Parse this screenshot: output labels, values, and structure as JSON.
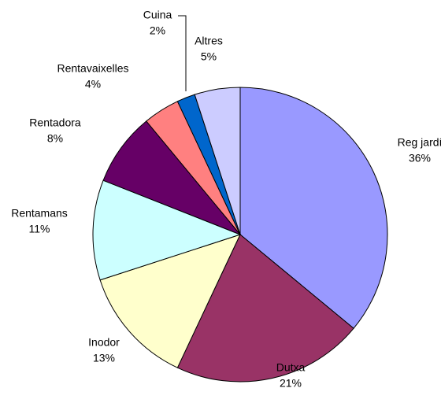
{
  "chart_data": {
    "type": "pie",
    "categories": [
      "Reg jardí",
      "Dutxa",
      "Inodor",
      "Rentamans",
      "Rentadora",
      "Rentavaixelles",
      "Cuina",
      "Altres"
    ],
    "values": [
      36,
      21,
      13,
      11,
      8,
      4,
      2,
      5
    ],
    "value_labels": [
      "36%",
      "21%",
      "13%",
      "11%",
      "8%",
      "4%",
      "2%",
      "5%"
    ],
    "colors": [
      "#9999ff",
      "#993366",
      "#ffffcc",
      "#ccffff",
      "#660066",
      "#ff8080",
      "#0066cc",
      "#ccccff"
    ]
  }
}
